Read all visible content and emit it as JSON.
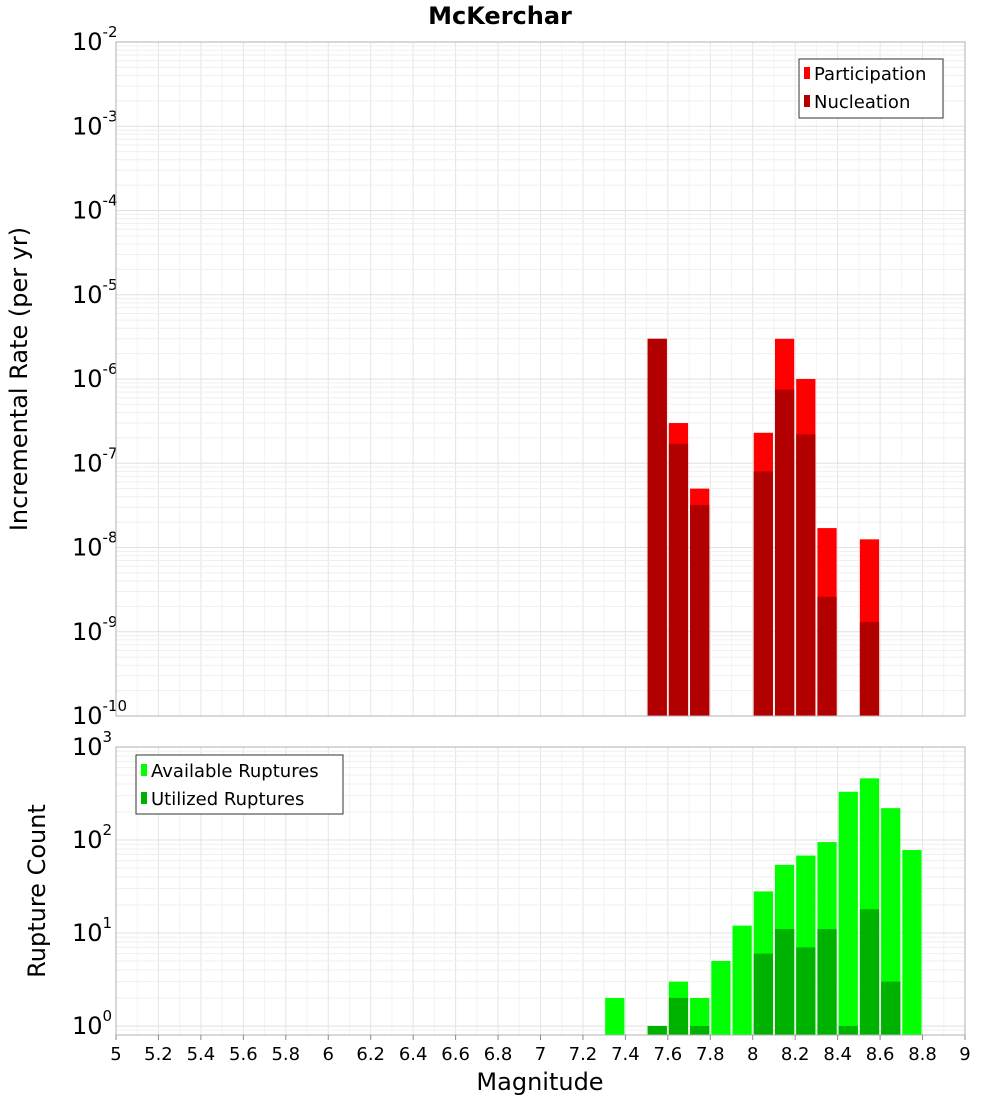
{
  "chart_data": [
    {
      "type": "bar",
      "title": "McKerchar",
      "xlabel": "",
      "ylabel": "Incremental Rate (per yr)",
      "yscale": "log",
      "ylim": [
        1e-10,
        0.01
      ],
      "xlim": [
        5,
        9
      ],
      "y_tick_exponents": [
        -2,
        -3,
        -4,
        -5,
        -6,
        -7,
        -8,
        -9,
        -10
      ],
      "grid": true,
      "legend_position": "top-right",
      "x": [
        7.55,
        7.65,
        7.75,
        8.05,
        8.15,
        8.25,
        8.35,
        8.55
      ],
      "series": [
        {
          "name": "Participation",
          "color": "#ff0000",
          "values": [
            3e-06,
            3e-07,
            5e-08,
            2.3e-07,
            3e-06,
            1e-06,
            1.7e-08,
            1.25e-08
          ]
        },
        {
          "name": "Nucleation",
          "color": "#b20000",
          "values": [
            3e-06,
            1.7e-07,
            3.2e-08,
            8e-08,
            7.5e-07,
            2.2e-07,
            2.6e-09,
            1.3e-09
          ]
        }
      ]
    },
    {
      "type": "bar",
      "title": "",
      "xlabel": "Magnitude",
      "ylabel": "Rupture Count",
      "yscale": "log",
      "ylim": [
        0.8,
        1000
      ],
      "xlim": [
        5,
        9
      ],
      "y_tick_exponents": [
        3,
        2,
        1,
        0
      ],
      "x_ticks": [
        "5",
        "5.2",
        "5.4",
        "5.6",
        "5.8",
        "6",
        "6.2",
        "6.4",
        "6.6",
        "6.8",
        "7",
        "7.2",
        "7.4",
        "7.6",
        "7.8",
        "8",
        "8.2",
        "8.4",
        "8.6",
        "8.8",
        "9"
      ],
      "grid": true,
      "legend_position": "top-left",
      "x": [
        7.35,
        7.55,
        7.65,
        7.75,
        7.85,
        7.95,
        8.05,
        8.15,
        8.25,
        8.35,
        8.45,
        8.55,
        8.65,
        8.75
      ],
      "series": [
        {
          "name": "Available Ruptures",
          "color": "#00ff00",
          "values": [
            2,
            1,
            3,
            2,
            5,
            12,
            28,
            54,
            68,
            95,
            330,
            460,
            220,
            78
          ]
        },
        {
          "name": "Utilized Ruptures",
          "color": "#00b200",
          "values": [
            0,
            1,
            2,
            1,
            0,
            0,
            6,
            11,
            7,
            11,
            1,
            18,
            3,
            0
          ]
        }
      ]
    }
  ]
}
